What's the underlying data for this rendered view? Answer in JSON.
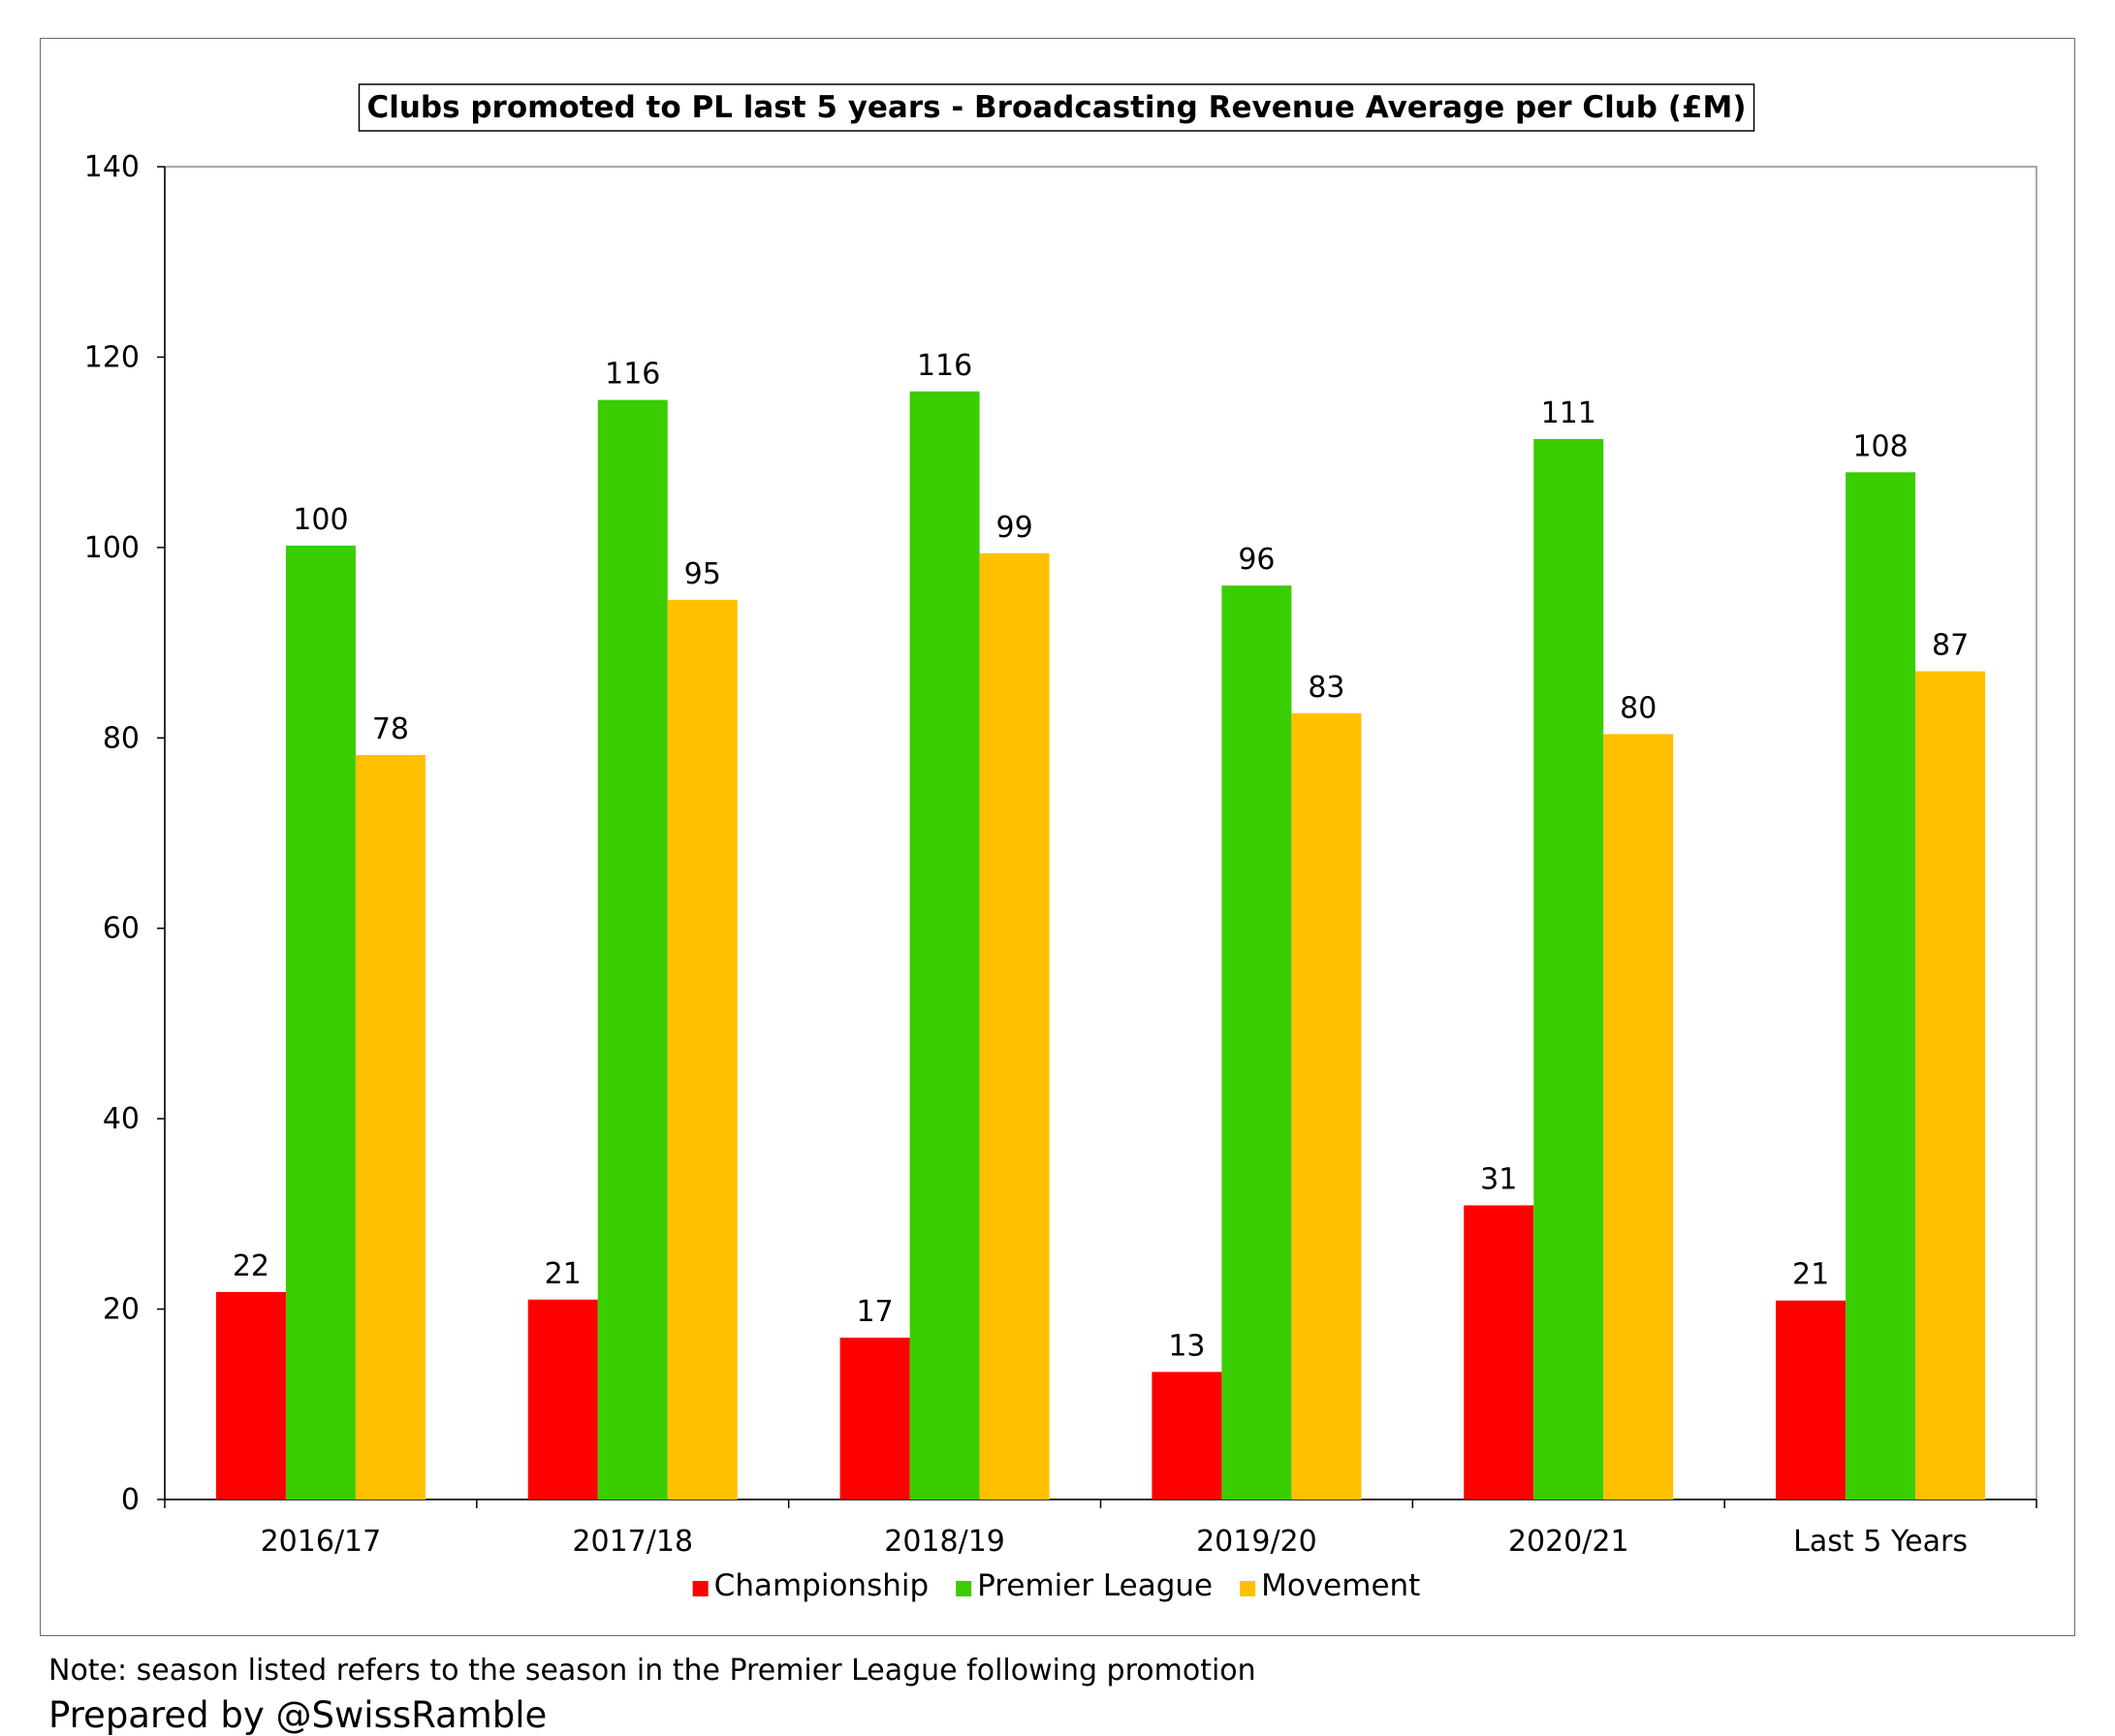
{
  "chart_data": {
    "type": "bar",
    "title": "Clubs promoted to PL last 5 years - Broadcasting Revenue Average per Club (£M)",
    "categories": [
      "2016/17",
      "2017/18",
      "2018/19",
      "2019/20",
      "2020/21",
      "Last 5 Years"
    ],
    "series": [
      {
        "name": "Championship",
        "color": "#ff0000",
        "values": [
          21.8,
          21.0,
          17.0,
          13.4,
          30.9,
          20.9
        ],
        "labels": [
          "22",
          "21",
          "17",
          "13",
          "31",
          "21"
        ]
      },
      {
        "name": "Premier League",
        "color": "#3acd00",
        "values": [
          100.2,
          115.5,
          116.4,
          96.0,
          111.4,
          107.9
        ],
        "labels": [
          "100",
          "116",
          "116",
          "96",
          "111",
          "108"
        ]
      },
      {
        "name": "Movement",
        "color": "#ffc000",
        "values": [
          78.2,
          94.5,
          99.4,
          82.6,
          80.4,
          87.0
        ],
        "labels": [
          "78",
          "95",
          "99",
          "83",
          "80",
          "87"
        ]
      }
    ],
    "ylim": [
      0,
      140
    ],
    "yticks": [
      0,
      20,
      40,
      60,
      80,
      100,
      120,
      140
    ],
    "xlabel": "",
    "ylabel": "",
    "legend_position": "bottom",
    "grid": false
  },
  "footer": {
    "note": "Note: season listed refers to the season in the Premier League following promotion",
    "credit": "Prepared by @SwissRamble"
  }
}
